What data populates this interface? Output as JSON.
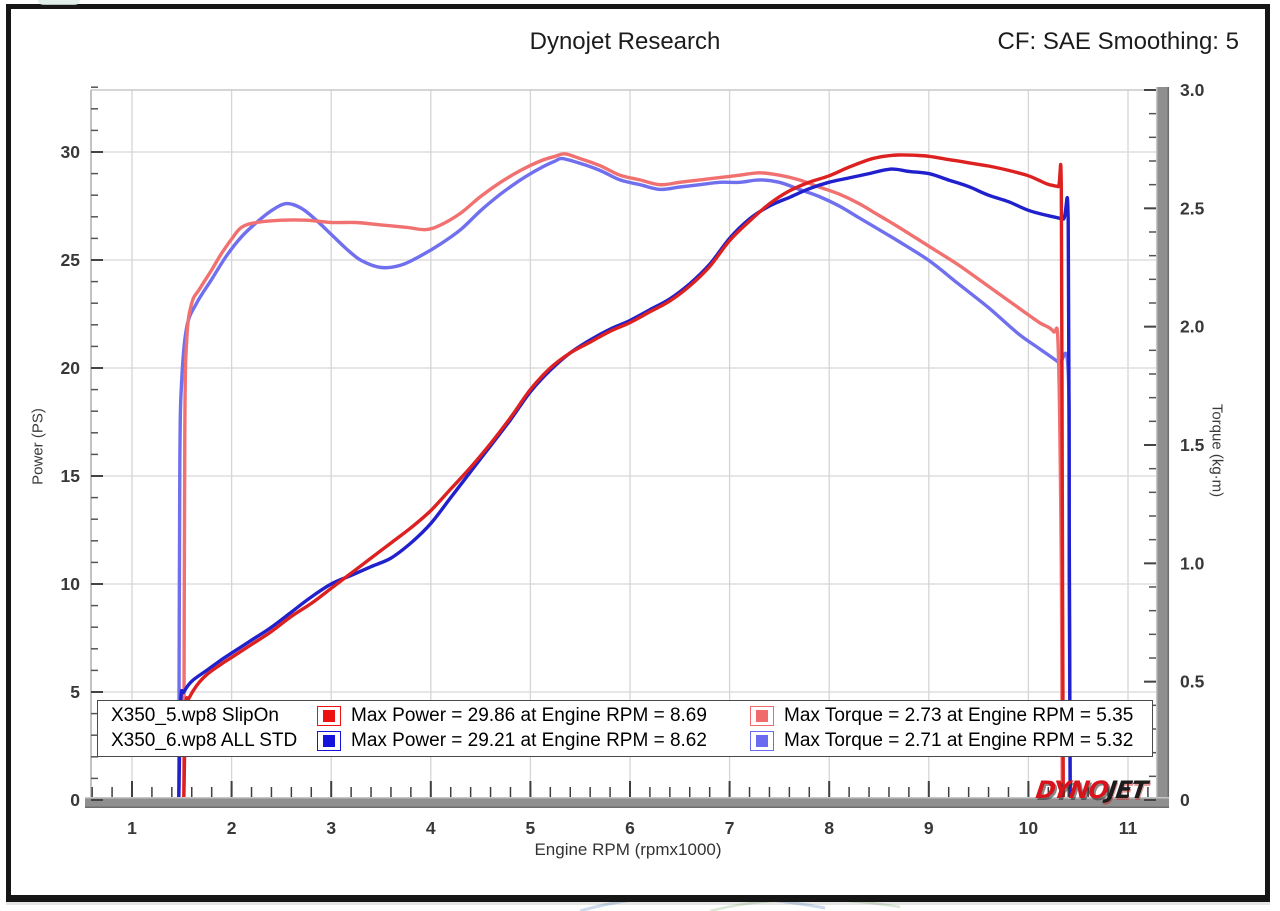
{
  "header": {
    "title": "Dynojet Research",
    "cf_label": "CF: SAE Smoothing: 5"
  },
  "logo": {
    "part1": "DYNO",
    "part2": "JET"
  },
  "legend": {
    "rows": [
      {
        "name": "X350_5.wp8 SlipOn",
        "power_text": "Max Power = 29.86 at Engine RPM = 8.69",
        "torque_text": "Max Torque = 2.73 at Engine RPM = 5.35",
        "power_color": "#ee1111",
        "torque_color": "#f26b6b"
      },
      {
        "name": "X350_6.wp8 ALL STD",
        "power_text": "Max Power = 29.21 at Engine RPM = 8.62",
        "torque_text": "Max Torque = 2.71 at Engine RPM = 5.32",
        "power_color": "#1414dd",
        "torque_color": "#6b6bf2"
      }
    ]
  },
  "chart_data": {
    "type": "line",
    "title": "Dynojet Research",
    "grid": true,
    "x_axis": {
      "label": "Engine RPM (rpmx1000)",
      "tick_labels": [
        "1",
        "2",
        "3",
        "4",
        "5",
        "6",
        "7",
        "8",
        "9",
        "10",
        "11"
      ],
      "tick_values": [
        1,
        2,
        3,
        4,
        5,
        6,
        7,
        8,
        9,
        10,
        11
      ],
      "minor_step": 0.2,
      "range_displayed": [
        0.6,
        11.3
      ]
    },
    "y_left_axis": {
      "label": "Power (PS)",
      "tick_labels": [
        "0",
        "5",
        "10",
        "15",
        "20",
        "25",
        "30"
      ],
      "tick_values": [
        0,
        5,
        10,
        15,
        20,
        25,
        30
      ],
      "minor_step": 1,
      "range_displayed": [
        0,
        33
      ]
    },
    "y_right_axis": {
      "label": "Torque (kg·m)",
      "tick_labels": [
        "0",
        "0.5",
        "1.0",
        "1.5",
        "2.0",
        "2.5",
        "3.0"
      ],
      "tick_values": [
        0,
        0.5,
        1.0,
        1.5,
        2.0,
        2.5,
        3.0
      ],
      "minor_step": 0.1,
      "range_displayed": [
        0,
        3.0
      ]
    },
    "series": [
      {
        "name": "X350_6.wp8 ALL STD - Torque",
        "axis": "right",
        "color": "#7070ee",
        "max": {
          "value": 2.71,
          "rpm": 5.32
        },
        "points": [
          [
            1.47,
            0
          ],
          [
            1.48,
            1.4
          ],
          [
            1.5,
            1.78
          ],
          [
            1.55,
            2.0
          ],
          [
            1.65,
            2.1
          ],
          [
            1.8,
            2.2
          ],
          [
            1.95,
            2.3
          ],
          [
            2.1,
            2.38
          ],
          [
            2.25,
            2.44
          ],
          [
            2.4,
            2.49
          ],
          [
            2.55,
            2.52
          ],
          [
            2.7,
            2.5
          ],
          [
            2.85,
            2.45
          ],
          [
            3.0,
            2.39
          ],
          [
            3.15,
            2.33
          ],
          [
            3.3,
            2.28
          ],
          [
            3.5,
            2.25
          ],
          [
            3.7,
            2.26
          ],
          [
            3.9,
            2.3
          ],
          [
            4.1,
            2.35
          ],
          [
            4.3,
            2.41
          ],
          [
            4.5,
            2.49
          ],
          [
            4.7,
            2.56
          ],
          [
            4.9,
            2.62
          ],
          [
            5.1,
            2.67
          ],
          [
            5.25,
            2.7
          ],
          [
            5.32,
            2.71
          ],
          [
            5.5,
            2.69
          ],
          [
            5.7,
            2.66
          ],
          [
            5.9,
            2.62
          ],
          [
            6.1,
            2.6
          ],
          [
            6.3,
            2.58
          ],
          [
            6.5,
            2.59
          ],
          [
            6.7,
            2.6
          ],
          [
            6.9,
            2.61
          ],
          [
            7.1,
            2.61
          ],
          [
            7.3,
            2.62
          ],
          [
            7.5,
            2.61
          ],
          [
            7.7,
            2.58
          ],
          [
            7.9,
            2.55
          ],
          [
            8.1,
            2.51
          ],
          [
            8.3,
            2.46
          ],
          [
            8.5,
            2.41
          ],
          [
            8.7,
            2.36
          ],
          [
            9.0,
            2.28
          ],
          [
            9.3,
            2.18
          ],
          [
            9.6,
            2.08
          ],
          [
            9.9,
            1.97
          ],
          [
            10.1,
            1.91
          ],
          [
            10.3,
            1.85
          ],
          [
            10.4,
            1.81
          ],
          [
            10.41,
            0.9
          ],
          [
            10.42,
            0
          ]
        ]
      },
      {
        "name": "X350_5.wp8 SlipOn - Torque",
        "axis": "right",
        "color": "#f17070",
        "max": {
          "value": 2.73,
          "rpm": 5.35
        },
        "points": [
          [
            1.52,
            0
          ],
          [
            1.53,
            1.55
          ],
          [
            1.55,
            1.95
          ],
          [
            1.6,
            2.1
          ],
          [
            1.68,
            2.16
          ],
          [
            1.8,
            2.24
          ],
          [
            1.9,
            2.31
          ],
          [
            2.0,
            2.37
          ],
          [
            2.1,
            2.42
          ],
          [
            2.25,
            2.44
          ],
          [
            2.5,
            2.45
          ],
          [
            2.75,
            2.45
          ],
          [
            3.0,
            2.44
          ],
          [
            3.25,
            2.44
          ],
          [
            3.5,
            2.43
          ],
          [
            3.75,
            2.42
          ],
          [
            3.95,
            2.41
          ],
          [
            4.1,
            2.43
          ],
          [
            4.3,
            2.48
          ],
          [
            4.5,
            2.55
          ],
          [
            4.7,
            2.61
          ],
          [
            4.9,
            2.66
          ],
          [
            5.1,
            2.7
          ],
          [
            5.25,
            2.72
          ],
          [
            5.35,
            2.73
          ],
          [
            5.5,
            2.71
          ],
          [
            5.7,
            2.68
          ],
          [
            5.9,
            2.64
          ],
          [
            6.1,
            2.62
          ],
          [
            6.3,
            2.6
          ],
          [
            6.5,
            2.61
          ],
          [
            6.7,
            2.62
          ],
          [
            6.9,
            2.63
          ],
          [
            7.1,
            2.64
          ],
          [
            7.3,
            2.65
          ],
          [
            7.5,
            2.64
          ],
          [
            7.7,
            2.62
          ],
          [
            7.9,
            2.59
          ],
          [
            8.1,
            2.56
          ],
          [
            8.3,
            2.52
          ],
          [
            8.5,
            2.47
          ],
          [
            8.7,
            2.42
          ],
          [
            9.0,
            2.34
          ],
          [
            9.3,
            2.26
          ],
          [
            9.6,
            2.17
          ],
          [
            9.9,
            2.08
          ],
          [
            10.1,
            2.02
          ],
          [
            10.25,
            1.98
          ],
          [
            10.3,
            1.9
          ],
          [
            10.33,
            1.0
          ],
          [
            10.34,
            0
          ]
        ]
      },
      {
        "name": "X350_6.wp8 ALL STD - Power",
        "axis": "left",
        "color": "#2020cc",
        "max": {
          "value": 29.21,
          "rpm": 8.62
        },
        "points": [
          [
            1.47,
            0
          ],
          [
            1.49,
            4.6
          ],
          [
            1.52,
            5.0
          ],
          [
            1.6,
            5.5
          ],
          [
            1.75,
            6.0
          ],
          [
            1.9,
            6.5
          ],
          [
            2.0,
            6.8
          ],
          [
            2.2,
            7.4
          ],
          [
            2.4,
            8.0
          ],
          [
            2.6,
            8.7
          ],
          [
            2.8,
            9.4
          ],
          [
            3.0,
            10.0
          ],
          [
            3.2,
            10.4
          ],
          [
            3.4,
            10.8
          ],
          [
            3.6,
            11.2
          ],
          [
            3.8,
            11.9
          ],
          [
            4.0,
            12.8
          ],
          [
            4.2,
            14.0
          ],
          [
            4.4,
            15.2
          ],
          [
            4.6,
            16.4
          ],
          [
            4.8,
            17.6
          ],
          [
            5.0,
            18.9
          ],
          [
            5.2,
            19.9
          ],
          [
            5.4,
            20.7
          ],
          [
            5.6,
            21.3
          ],
          [
            5.8,
            21.8
          ],
          [
            6.0,
            22.2
          ],
          [
            6.2,
            22.7
          ],
          [
            6.4,
            23.2
          ],
          [
            6.6,
            23.9
          ],
          [
            6.8,
            24.8
          ],
          [
            7.0,
            26.0
          ],
          [
            7.2,
            26.9
          ],
          [
            7.4,
            27.5
          ],
          [
            7.6,
            27.9
          ],
          [
            7.8,
            28.3
          ],
          [
            8.0,
            28.6
          ],
          [
            8.2,
            28.8
          ],
          [
            8.4,
            29.0
          ],
          [
            8.62,
            29.21
          ],
          [
            8.8,
            29.1
          ],
          [
            9.0,
            29.0
          ],
          [
            9.2,
            28.7
          ],
          [
            9.4,
            28.4
          ],
          [
            9.6,
            28.0
          ],
          [
            9.8,
            27.7
          ],
          [
            10.0,
            27.3
          ],
          [
            10.2,
            27.05
          ],
          [
            10.35,
            26.9
          ],
          [
            10.4,
            26.85
          ],
          [
            10.41,
            13
          ],
          [
            10.42,
            0
          ]
        ]
      },
      {
        "name": "X350_5.wp8 SlipOn - Power",
        "axis": "left",
        "color": "#dd2020",
        "max": {
          "value": 29.86,
          "rpm": 8.69
        },
        "points": [
          [
            1.52,
            0
          ],
          [
            1.54,
            4.3
          ],
          [
            1.57,
            4.7
          ],
          [
            1.65,
            5.3
          ],
          [
            1.75,
            5.8
          ],
          [
            1.9,
            6.3
          ],
          [
            2.0,
            6.6
          ],
          [
            2.2,
            7.2
          ],
          [
            2.4,
            7.8
          ],
          [
            2.6,
            8.5
          ],
          [
            2.8,
            9.1
          ],
          [
            3.0,
            9.8
          ],
          [
            3.2,
            10.5
          ],
          [
            3.4,
            11.2
          ],
          [
            3.6,
            11.9
          ],
          [
            3.8,
            12.6
          ],
          [
            4.0,
            13.4
          ],
          [
            4.2,
            14.4
          ],
          [
            4.4,
            15.4
          ],
          [
            4.6,
            16.5
          ],
          [
            4.8,
            17.7
          ],
          [
            5.0,
            19.0
          ],
          [
            5.2,
            20.0
          ],
          [
            5.4,
            20.7
          ],
          [
            5.6,
            21.2
          ],
          [
            5.8,
            21.7
          ],
          [
            6.0,
            22.1
          ],
          [
            6.2,
            22.6
          ],
          [
            6.4,
            23.1
          ],
          [
            6.6,
            23.8
          ],
          [
            6.8,
            24.7
          ],
          [
            7.0,
            25.9
          ],
          [
            7.2,
            26.8
          ],
          [
            7.4,
            27.6
          ],
          [
            7.6,
            28.2
          ],
          [
            7.8,
            28.6
          ],
          [
            8.0,
            28.9
          ],
          [
            8.2,
            29.3
          ],
          [
            8.4,
            29.65
          ],
          [
            8.55,
            29.8
          ],
          [
            8.69,
            29.86
          ],
          [
            8.85,
            29.85
          ],
          [
            9.0,
            29.8
          ],
          [
            9.2,
            29.65
          ],
          [
            9.4,
            29.5
          ],
          [
            9.6,
            29.35
          ],
          [
            9.8,
            29.15
          ],
          [
            10.0,
            28.9
          ],
          [
            10.1,
            28.7
          ],
          [
            10.2,
            28.5
          ],
          [
            10.3,
            28.4
          ],
          [
            10.33,
            28.35
          ],
          [
            10.34,
            14
          ],
          [
            10.35,
            0
          ]
        ]
      }
    ]
  }
}
